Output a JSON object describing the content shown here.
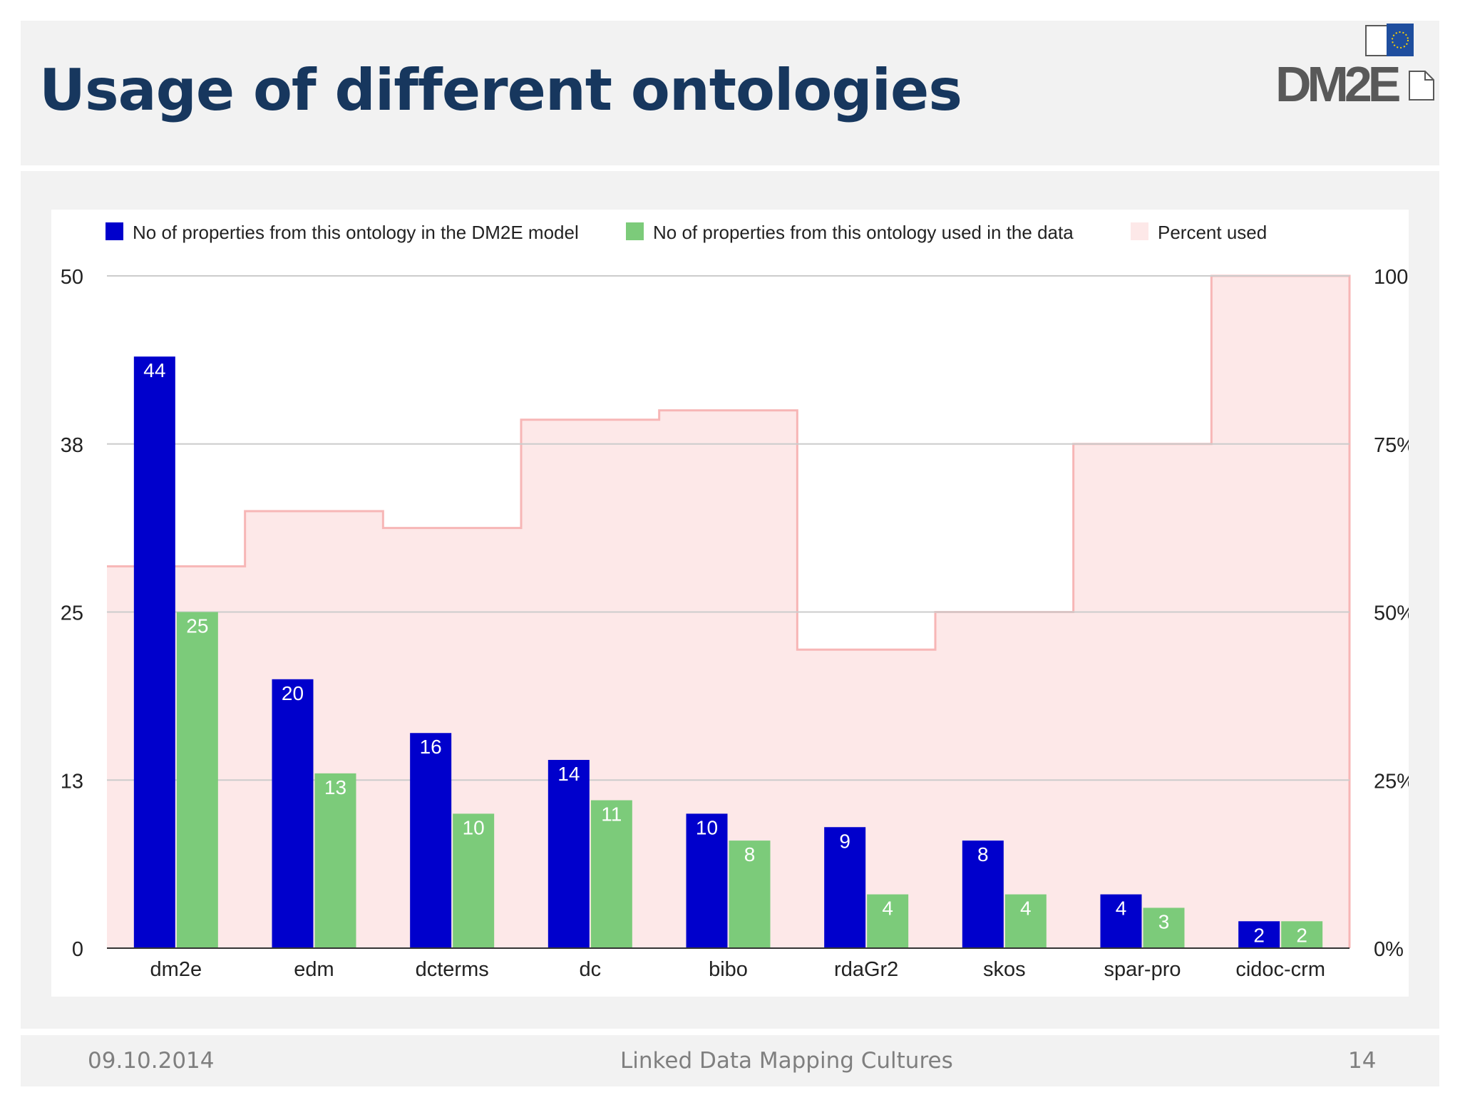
{
  "slide": {
    "title": "Usage of different ontologies",
    "logo_text": "DM2E",
    "footer_date": "09.10.2014",
    "footer_center": "Linked Data Mapping Cultures",
    "page_number": "14"
  },
  "colors": {
    "title": "#17375e",
    "series_model": "#0000cc",
    "series_data": "#7ccb7a",
    "percent_fill": "#fde8e8",
    "percent_line": "#f7b6b6",
    "header_band": "#f2f2f2",
    "logo": "#595959",
    "logo_flag": "#1f4e9e"
  },
  "chart_data": {
    "type": "bar",
    "categories": [
      "dm2e",
      "edm",
      "dcterms",
      "dc",
      "bibo",
      "rdaGr2",
      "skos",
      "spar-pro",
      "cidoc-crm"
    ],
    "series": [
      {
        "name": "No of properties from this ontology in the DM2E model",
        "type": "bar",
        "axis": "left",
        "values": [
          44,
          20,
          16,
          14,
          10,
          9,
          8,
          4,
          2
        ]
      },
      {
        "name": "No of properties from this ontology used in the data",
        "type": "bar",
        "axis": "left",
        "values": [
          25,
          13,
          10,
          11,
          8,
          4,
          4,
          3,
          2
        ]
      },
      {
        "name": "Percent used",
        "type": "stepped-area",
        "axis": "right",
        "values": [
          56.8,
          65,
          62.5,
          78.6,
          80,
          44.4,
          50,
          75,
          100
        ]
      }
    ],
    "y_axis_left": {
      "ylim": [
        0,
        50
      ],
      "ticks": [
        "0",
        "13",
        "25",
        "38",
        "50"
      ]
    },
    "y_axis_right": {
      "ylim": [
        0,
        100
      ],
      "ticks": [
        "0%",
        "25%",
        "50%",
        "75%",
        "100%"
      ]
    },
    "data_labels": true,
    "grid": true,
    "legend_position": "top"
  }
}
